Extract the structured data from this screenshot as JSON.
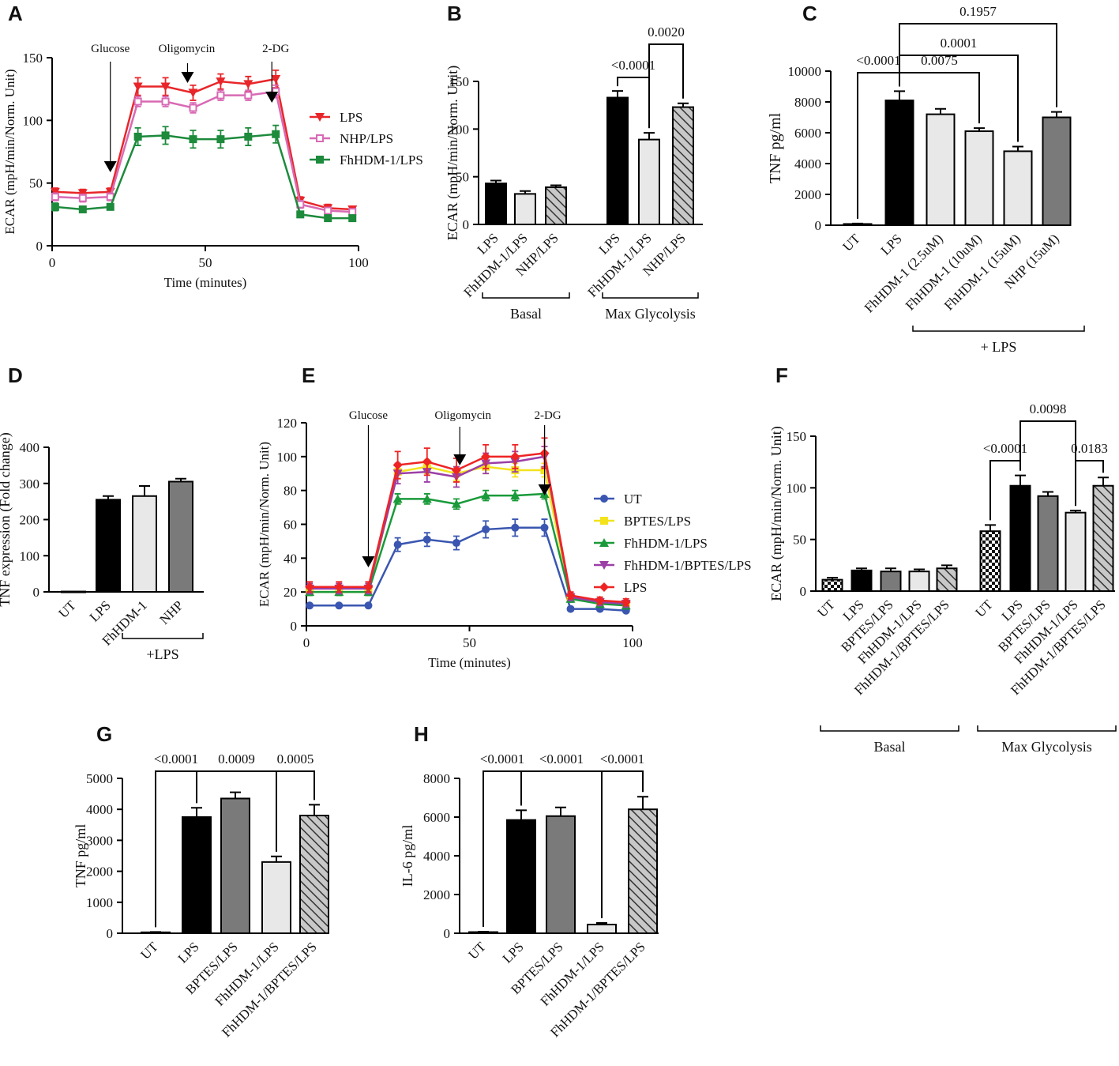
{
  "figure": {
    "panel_letters": [
      "A",
      "B",
      "C",
      "D",
      "E",
      "F",
      "G",
      "H"
    ]
  },
  "colors": {
    "lps_red": "#e8262a",
    "nhp_pink": "#d86ab4",
    "fh_green": "#1d8a3c",
    "ut_blue": "#3a56b0",
    "bptes_yellow": "#f2e31c",
    "fh_green_e": "#1a9a3a",
    "fhbptes_purple": "#9b3fa6",
    "lps_red_e": "#ee2424",
    "black": "#000000",
    "light": "#e8e8e8",
    "grey": "#7a7a7a",
    "hatch": "#b0b0b0"
  },
  "chart_data": [
    {
      "panel": "A",
      "type": "line",
      "xlabel": "Time (minutes)",
      "ylabel": "ECAR (mpH/min/Norm. Unit)",
      "xlim": [
        0,
        100
      ],
      "ylim": [
        0,
        150
      ],
      "xticks": [
        0,
        50,
        100
      ],
      "yticks": [
        0,
        50,
        100,
        150
      ],
      "x": [
        1,
        10,
        19,
        28,
        37,
        46,
        55,
        64,
        73,
        81,
        90,
        98
      ],
      "series": [
        {
          "name": "LPS",
          "color": "#e8262a",
          "marker": "tri-down",
          "values": [
            43,
            42,
            43,
            127,
            127,
            122,
            131,
            129,
            133,
            36,
            30,
            29
          ],
          "err": [
            3,
            3,
            3,
            7,
            7,
            6,
            6,
            6,
            7,
            3,
            3,
            2
          ]
        },
        {
          "name": "NHP/LPS",
          "color": "#d86ab4",
          "marker": "square-open",
          "values": [
            39,
            38,
            39,
            115,
            115,
            110,
            120,
            120,
            123,
            33,
            28,
            27
          ],
          "err": [
            3,
            3,
            3,
            4,
            4,
            4,
            4,
            4,
            5,
            3,
            2,
            2
          ]
        },
        {
          "name": "FhHDM-1/LPS",
          "color": "#1d8a3c",
          "marker": "square",
          "values": [
            31,
            29,
            31,
            87,
            88,
            85,
            85,
            87,
            89,
            25,
            22,
            22
          ],
          "err": [
            3,
            2,
            2,
            7,
            7,
            7,
            7,
            7,
            7,
            2,
            2,
            2
          ]
        }
      ],
      "annotations": [
        {
          "text": "Glucose",
          "x": 19
        },
        {
          "text": "Oligomycin",
          "x": 46
        },
        {
          "text": "2-DG",
          "x": 73
        }
      ]
    },
    {
      "panel": "B",
      "type": "bar",
      "ylabel": "ECAR (mpH/min/Norm. Unit)",
      "ylim": [
        0,
        150
      ],
      "yticks": [
        0,
        50,
        100,
        150
      ],
      "categories": [
        "LPS",
        "FhHDM-1/LPS",
        "NHP/LPS",
        "LPS",
        "FhHDM-1/LPS",
        "NHP/LPS"
      ],
      "values": [
        43,
        32,
        39,
        133,
        89,
        123
      ],
      "err": [
        3,
        3,
        2,
        7,
        7,
        4
      ],
      "fills": [
        "black",
        "light",
        "hatch",
        "black",
        "light",
        "hatch"
      ],
      "groups": [
        {
          "label": "Basal",
          "from": 0,
          "to": 2
        },
        {
          "label": "Max Glycolysis",
          "from": 3,
          "to": 5
        }
      ],
      "comparisons": [
        {
          "a": 3,
          "b": 4,
          "p": "<0.0001",
          "level": 0
        },
        {
          "a": 4,
          "b": 5,
          "p": "0.0020",
          "level": 1
        }
      ]
    },
    {
      "panel": "C",
      "type": "bar",
      "ylabel": "TNF pg/ml",
      "ylim": [
        0,
        10000
      ],
      "yticks": [
        0,
        2000,
        4000,
        6000,
        8000,
        10000
      ],
      "categories": [
        "UT",
        "LPS",
        "FhHDM-1 (2.5uM)",
        "FhHDM-1 (10uM)",
        "FhHDM-1 (15uM)",
        "NHP (15uM)"
      ],
      "values": [
        80,
        8100,
        7200,
        6100,
        4800,
        7000
      ],
      "err": [
        30,
        600,
        350,
        200,
        300,
        350
      ],
      "fills": [
        "black",
        "black",
        "light",
        "light",
        "light",
        "grey"
      ],
      "groups": [
        {
          "label": "+ LPS",
          "from": 2,
          "to": 5
        }
      ],
      "comparisons": [
        {
          "a": 0,
          "b": 1,
          "p": "<0.0001",
          "level": 0
        },
        {
          "a": 1,
          "b": 3,
          "p": "0.0075",
          "level": 0
        },
        {
          "a": 1,
          "b": 4,
          "p": "0.0001",
          "level": 1
        },
        {
          "a": 1,
          "b": 5,
          "p": "0.1957",
          "level": 2
        }
      ]
    },
    {
      "panel": "D",
      "type": "bar",
      "ylabel": "TNF expression (Fold change)",
      "ylim": [
        0,
        400
      ],
      "yticks": [
        0,
        100,
        200,
        300,
        400
      ],
      "categories": [
        "UT",
        "LPS",
        "FhHDM-1",
        "NHP"
      ],
      "values": [
        1,
        255,
        265,
        305
      ],
      "err": [
        0,
        10,
        28,
        8
      ],
      "fills": [
        "black",
        "black",
        "light",
        "grey"
      ],
      "groups": [
        {
          "label": "+LPS",
          "from": 2,
          "to": 3
        }
      ],
      "comparisons": []
    },
    {
      "panel": "E",
      "type": "line",
      "xlabel": "Time (minutes)",
      "ylabel": "ECAR (mpH/min/Norm. Unit)",
      "xlim": [
        0,
        100
      ],
      "ylim": [
        0,
        120
      ],
      "xticks": [
        0,
        50,
        100
      ],
      "yticks": [
        0,
        20,
        40,
        60,
        80,
        100,
        120
      ],
      "x": [
        1,
        10,
        19,
        28,
        37,
        46,
        55,
        64,
        73,
        81,
        90,
        98
      ],
      "series": [
        {
          "name": "UT",
          "color": "#3a56b0",
          "marker": "circle",
          "values": [
            12,
            12,
            12,
            48,
            51,
            49,
            57,
            58,
            58,
            10,
            10,
            9
          ],
          "err": [
            1,
            1,
            1,
            4,
            4,
            4,
            5,
            5,
            5,
            1,
            1,
            1
          ]
        },
        {
          "name": "BPTES/LPS",
          "color": "#f2e31c",
          "marker": "square",
          "values": [
            20,
            20,
            20,
            91,
            94,
            90,
            94,
            92,
            92,
            17,
            14,
            13
          ],
          "err": [
            2,
            2,
            2,
            4,
            4,
            4,
            4,
            4,
            4,
            2,
            2,
            2
          ]
        },
        {
          "name": "FhHDM-1/LPS",
          "color": "#1a9a3a",
          "marker": "triangle",
          "values": [
            20,
            20,
            20,
            75,
            75,
            72,
            77,
            77,
            78,
            16,
            13,
            12
          ],
          "err": [
            2,
            2,
            2,
            3,
            3,
            3,
            3,
            3,
            3,
            2,
            2,
            2
          ]
        },
        {
          "name": "FhHDM-1/BPTES/LPS",
          "color": "#9b3fa6",
          "marker": "tri-down",
          "values": [
            22,
            22,
            22,
            90,
            91,
            88,
            96,
            97,
            100,
            17,
            14,
            13
          ],
          "err": [
            3,
            3,
            3,
            6,
            6,
            6,
            6,
            6,
            6,
            2,
            2,
            2
          ]
        },
        {
          "name": "LPS",
          "color": "#ee2424",
          "marker": "diamond",
          "values": [
            23,
            23,
            23,
            95,
            97,
            92,
            100,
            100,
            102,
            18,
            15,
            14
          ],
          "err": [
            3,
            3,
            3,
            8,
            8,
            7,
            7,
            7,
            9,
            2,
            2,
            2
          ]
        }
      ],
      "annotations": [
        {
          "text": "Glucose",
          "x": 19
        },
        {
          "text": "Oligomycin",
          "x": 48
        },
        {
          "text": "2-DG",
          "x": 74
        }
      ]
    },
    {
      "panel": "F",
      "type": "bar",
      "ylabel": "ECAR (mpH/min/Norm. Unit)",
      "ylim": [
        0,
        150
      ],
      "yticks": [
        0,
        50,
        100,
        150
      ],
      "categories": [
        "UT",
        "LPS",
        "BPTES/LPS",
        "FhHDM-1/LPS",
        "FhHDM-1/BPTES/LPS",
        "UT",
        "LPS",
        "BPTES/LPS",
        "FhHDM-1/LPS",
        "FhHDM-1/BPTES/LPS"
      ],
      "values": [
        11,
        20,
        19,
        19,
        22,
        58,
        102,
        92,
        76,
        102
      ],
      "err": [
        2,
        2,
        3,
        2,
        3,
        6,
        10,
        4,
        2,
        8
      ],
      "fills": [
        "checker",
        "black",
        "grey",
        "light",
        "hatch",
        "checker",
        "black",
        "grey",
        "light",
        "hatch"
      ],
      "groups": [
        {
          "label": "Basal",
          "from": 0,
          "to": 4
        },
        {
          "label": "Max Glycolysis",
          "from": 5,
          "to": 9
        }
      ],
      "comparisons": [
        {
          "a": 5,
          "b": 6,
          "p": "<0.0001",
          "level": 0
        },
        {
          "a": 8,
          "b": 9,
          "p": "0.0183",
          "level": 0
        },
        {
          "a": 6,
          "b": 8,
          "p": "0.0098",
          "level": 1
        }
      ]
    },
    {
      "panel": "G",
      "type": "bar",
      "ylabel": "TNF pg/ml",
      "ylim": [
        0,
        5000
      ],
      "yticks": [
        0,
        1000,
        2000,
        3000,
        4000,
        5000
      ],
      "categories": [
        "UT",
        "LPS",
        "BPTES/LPS",
        "FhHDM-1/LPS",
        "FhHDM-1/BPTES/LPS"
      ],
      "values": [
        30,
        3750,
        4350,
        2300,
        3800
      ],
      "err": [
        10,
        300,
        200,
        180,
        350
      ],
      "fills": [
        "black",
        "black",
        "grey",
        "light",
        "hatch"
      ],
      "groups": [],
      "comparisons": [
        {
          "a": 0,
          "b": 1,
          "p": "<0.0001",
          "level": 0
        },
        {
          "a": 1,
          "b": 3,
          "p": "0.0009",
          "level": 0
        },
        {
          "a": 3,
          "b": 4,
          "p": "0.0005",
          "level": 0
        }
      ]
    },
    {
      "panel": "H",
      "type": "bar",
      "ylabel": "IL-6 pg/ml",
      "ylim": [
        0,
        8000
      ],
      "yticks": [
        0,
        2000,
        4000,
        6000,
        8000
      ],
      "categories": [
        "UT",
        "LPS",
        "BPTES/LPS",
        "FhHDM-1/LPS",
        "FhHDM-1/BPTES/LPS"
      ],
      "values": [
        60,
        5850,
        6050,
        450,
        6400
      ],
      "err": [
        20,
        500,
        450,
        80,
        650
      ],
      "fills": [
        "black",
        "black",
        "grey",
        "light",
        "hatch"
      ],
      "groups": [],
      "comparisons": [
        {
          "a": 0,
          "b": 1,
          "p": "<0.0001",
          "level": 0
        },
        {
          "a": 1,
          "b": 3,
          "p": "<0.0001",
          "level": 0
        },
        {
          "a": 3,
          "b": 4,
          "p": "<0.0001",
          "level": 0
        }
      ]
    }
  ]
}
